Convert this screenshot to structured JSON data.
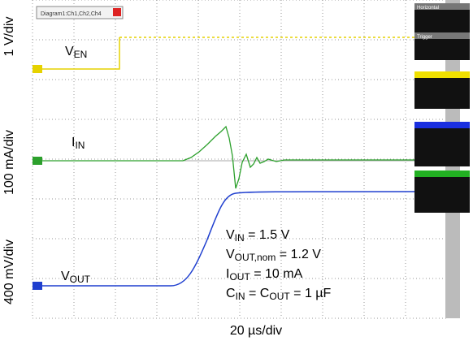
{
  "window_title": "Diagram1:Ch1,Ch2,Ch4",
  "panel_headers": [
    "Horizontal",
    "Trigger"
  ],
  "axis_labels": {
    "en": "1 V/div",
    "in": "100 mA/div",
    "out": "400 mV/div",
    "time": "20 µs/div"
  },
  "trace_labels": {
    "en": [
      {
        "text": "V"
      },
      {
        "text": "EN",
        "sub": true
      }
    ],
    "in": [
      {
        "text": "I"
      },
      {
        "text": "IN",
        "sub": true
      }
    ],
    "out": [
      {
        "text": "V"
      },
      {
        "text": "OUT",
        "sub": true
      }
    ]
  },
  "conditions": [
    [
      {
        "text": "V"
      },
      {
        "text": "IN",
        "sub": true
      },
      {
        "text": " = 1.5 V"
      }
    ],
    [
      {
        "text": "V"
      },
      {
        "text": "OUT,nom",
        "sub": true
      },
      {
        "text": " = 1.2 V"
      }
    ],
    [
      {
        "text": "I"
      },
      {
        "text": "OUT",
        "sub": true
      },
      {
        "text": " = 10 mA"
      }
    ],
    [
      {
        "text": "C"
      },
      {
        "text": "IN",
        "sub": true
      },
      {
        "text": " = C"
      },
      {
        "text": "OUT",
        "sub": true
      },
      {
        "text": " = 1 µF"
      }
    ]
  ]
}
